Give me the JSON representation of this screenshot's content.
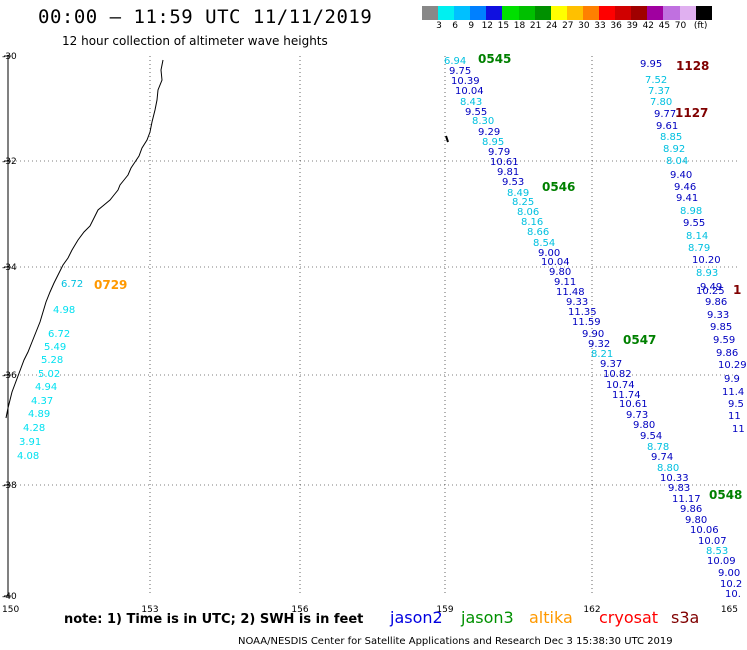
{
  "header": {
    "title": "00:00 – 11:59 UTC 11/11/2019",
    "subtitle": "12 hour collection of altimeter wave heights"
  },
  "colorbar": {
    "unit_label": "(ft)",
    "swatches": [
      "#888888",
      "#00f0f0",
      "#00c0ff",
      "#0080ff",
      "#1010e0",
      "#00e000",
      "#00c000",
      "#009000",
      "#ffff00",
      "#ffc000",
      "#ff8000",
      "#ff0000",
      "#d00000",
      "#a00000",
      "#a000a0",
      "#c070e0",
      "#e0b0f0",
      "#000000"
    ],
    "labels": [
      "3",
      "6",
      "9",
      "12",
      "15",
      "18",
      "21",
      "24",
      "27",
      "30",
      "33",
      "36",
      "39",
      "42",
      "45",
      "70"
    ]
  },
  "map": {
    "lon_ticks": [
      "150",
      "153",
      "156",
      "159",
      "162",
      "165"
    ],
    "lat_ticks": [
      "-30",
      "-32",
      "-34",
      "-36",
      "-38",
      "-40"
    ]
  },
  "tracks": [
    {
      "time": "0545",
      "color": "#008000"
    },
    {
      "time": "0546",
      "color": "#008000"
    },
    {
      "time": "0547",
      "color": "#008000"
    },
    {
      "time": "0548",
      "color": "#008000"
    },
    {
      "time": "0729",
      "color": "#ff9900"
    },
    {
      "time": "1128",
      "color": "#800000"
    },
    {
      "time": "1127",
      "color": "#800000"
    },
    {
      "time": "1",
      "color": "#800000"
    }
  ],
  "wave_values": [
    {
      "v": "6.94",
      "c": "#00c0e0"
    },
    {
      "v": "9.75",
      "c": "#0000c0"
    },
    {
      "v": "10.39",
      "c": "#0000c0"
    },
    {
      "v": "10.04",
      "c": "#0000c0"
    },
    {
      "v": "8.43",
      "c": "#00c0e0"
    },
    {
      "v": "9.55",
      "c": "#0000c0"
    },
    {
      "v": "8.30",
      "c": "#00c0e0"
    },
    {
      "v": "9.29",
      "c": "#0000c0"
    },
    {
      "v": "8.95",
      "c": "#00c0e0"
    },
    {
      "v": "9.79",
      "c": "#0000c0"
    },
    {
      "v": "10.61",
      "c": "#0000c0"
    },
    {
      "v": "9.81",
      "c": "#0000c0"
    },
    {
      "v": "9.53",
      "c": "#0000c0"
    },
    {
      "v": "8.49",
      "c": "#00c0e0"
    },
    {
      "v": "8.25",
      "c": "#00c0e0"
    },
    {
      "v": "8.06",
      "c": "#00c0e0"
    },
    {
      "v": "8.16",
      "c": "#00c0e0"
    },
    {
      "v": "8.66",
      "c": "#00c0e0"
    },
    {
      "v": "8.54",
      "c": "#00c0e0"
    },
    {
      "v": "9.00",
      "c": "#0000c0"
    },
    {
      "v": "10.04",
      "c": "#0000c0"
    },
    {
      "v": "9.80",
      "c": "#0000c0"
    },
    {
      "v": "9.11",
      "c": "#0000c0"
    },
    {
      "v": "11.48",
      "c": "#0000c0"
    },
    {
      "v": "9.33",
      "c": "#0000c0"
    },
    {
      "v": "11.35",
      "c": "#0000c0"
    },
    {
      "v": "11.59",
      "c": "#0000c0"
    },
    {
      "v": "9.90",
      "c": "#0000c0"
    },
    {
      "v": "9.32",
      "c": "#0000c0"
    },
    {
      "v": "8.21",
      "c": "#00c0e0"
    },
    {
      "v": "9.37",
      "c": "#0000c0"
    },
    {
      "v": "10.82",
      "c": "#0000c0"
    },
    {
      "v": "10.74",
      "c": "#0000c0"
    },
    {
      "v": "11.74",
      "c": "#0000c0"
    },
    {
      "v": "10.61",
      "c": "#0000c0"
    },
    {
      "v": "9.73",
      "c": "#0000c0"
    },
    {
      "v": "9.80",
      "c": "#0000c0"
    },
    {
      "v": "9.54",
      "c": "#0000c0"
    },
    {
      "v": "8.78",
      "c": "#00c0e0"
    },
    {
      "v": "9.74",
      "c": "#0000c0"
    },
    {
      "v": "8.80",
      "c": "#00c0e0"
    },
    {
      "v": "10.33",
      "c": "#0000c0"
    },
    {
      "v": "9.83",
      "c": "#0000c0"
    },
    {
      "v": "11.17",
      "c": "#0000c0"
    },
    {
      "v": "9.86",
      "c": "#0000c0"
    },
    {
      "v": "9.80",
      "c": "#0000c0"
    },
    {
      "v": "10.06",
      "c": "#0000c0"
    },
    {
      "v": "10.07",
      "c": "#0000c0"
    },
    {
      "v": "8.53",
      "c": "#00c0e0"
    },
    {
      "v": "10.09",
      "c": "#0000c0"
    },
    {
      "v": "9.00",
      "c": "#0000c0"
    },
    {
      "v": "10.2",
      "c": "#0000c0"
    },
    {
      "v": "10.",
      "c": "#0000c0"
    },
    {
      "v": "9.95",
      "c": "#0000c0"
    },
    {
      "v": "7.52",
      "c": "#00c0e0"
    },
    {
      "v": "7.37",
      "c": "#00c0e0"
    },
    {
      "v": "7.80",
      "c": "#00c0e0"
    },
    {
      "v": "9.77",
      "c": "#0000c0"
    },
    {
      "v": "9.61",
      "c": "#0000c0"
    },
    {
      "v": "8.85",
      "c": "#00c0e0"
    },
    {
      "v": "8.92",
      "c": "#00c0e0"
    },
    {
      "v": "8.04",
      "c": "#00c0e0"
    },
    {
      "v": "9.40",
      "c": "#0000c0"
    },
    {
      "v": "9.46",
      "c": "#0000c0"
    },
    {
      "v": "9.41",
      "c": "#0000c0"
    },
    {
      "v": "8.98",
      "c": "#00c0e0"
    },
    {
      "v": "9.55",
      "c": "#0000c0"
    },
    {
      "v": "8.14",
      "c": "#00c0e0"
    },
    {
      "v": "8.79",
      "c": "#00c0e0"
    },
    {
      "v": "10.20",
      "c": "#0000c0"
    },
    {
      "v": "8.93",
      "c": "#00c0e0"
    },
    {
      "v": "9.49",
      "c": "#0000c0"
    },
    {
      "v": "10.25",
      "c": "#0000c0"
    },
    {
      "v": "9.86",
      "c": "#0000c0"
    },
    {
      "v": "9.33",
      "c": "#0000c0"
    },
    {
      "v": "9.85",
      "c": "#0000c0"
    },
    {
      "v": "9.59",
      "c": "#0000c0"
    },
    {
      "v": "9.86",
      "c": "#0000c0"
    },
    {
      "v": "10.29",
      "c": "#0000c0"
    },
    {
      "v": "9.9",
      "c": "#0000c0"
    },
    {
      "v": "11.4",
      "c": "#0000c0"
    },
    {
      "v": "9.5",
      "c": "#0000c0"
    },
    {
      "v": "11",
      "c": "#0000c0"
    },
    {
      "v": "11",
      "c": "#0000c0"
    },
    {
      "v": "6.72",
      "c": "#00c0e0"
    },
    {
      "v": "4.98",
      "c": "#00e0f0"
    },
    {
      "v": "6.72",
      "c": "#00e0f0"
    },
    {
      "v": "5.49",
      "c": "#00e0f0"
    },
    {
      "v": "5.28",
      "c": "#00e0f0"
    },
    {
      "v": "5.02",
      "c": "#00e0f0"
    },
    {
      "v": "4.94",
      "c": "#00e0f0"
    },
    {
      "v": "4.37",
      "c": "#00e0f0"
    },
    {
      "v": "4.89",
      "c": "#00e0f0"
    },
    {
      "v": "4.28",
      "c": "#00e0f0"
    },
    {
      "v": "3.91",
      "c": "#00e0f0"
    },
    {
      "v": "4.08",
      "c": "#00e0f0"
    }
  ],
  "footer": {
    "note": "note:  1) Time is in UTC;  2) SWH is in feet",
    "satellites": [
      {
        "name": "jason2",
        "color": "#0000e0"
      },
      {
        "name": "jason3",
        "color": "#009000"
      },
      {
        "name": "altika",
        "color": "#ff9900"
      },
      {
        "name": "cryosat",
        "color": "#ff0000"
      },
      {
        "name": "s3a",
        "color": "#800000"
      }
    ],
    "credit": "NOAA/NESDIS Center for Satellite Applications and Research    Dec  3 15:38:30 UTC 2019"
  }
}
